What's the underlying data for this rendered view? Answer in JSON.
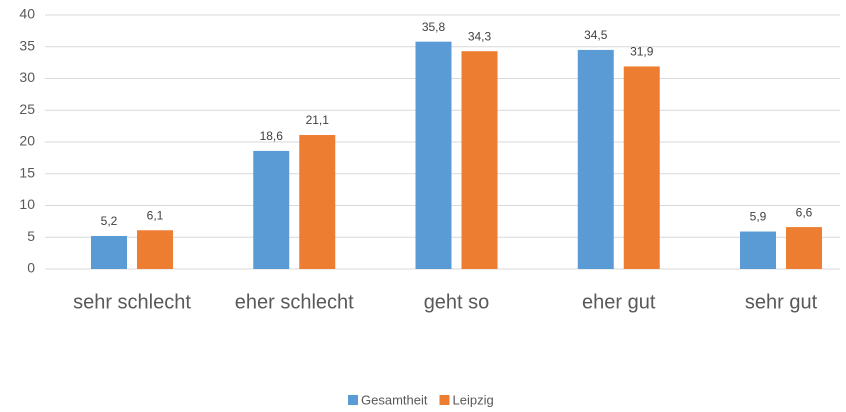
{
  "chart_data": {
    "type": "bar",
    "categories": [
      "sehr schlecht",
      "eher schlecht",
      "geht so",
      "eher gut",
      "sehr gut"
    ],
    "series": [
      {
        "name": "Gesamtheit",
        "color": "#5b9bd5",
        "values": [
          5.2,
          18.6,
          35.8,
          34.5,
          5.9
        ],
        "value_labels": [
          "5,2",
          "18,6",
          "35,8",
          "34,5",
          "5,9"
        ]
      },
      {
        "name": "Leipzig",
        "color": "#ed7d31",
        "values": [
          6.1,
          21.1,
          34.3,
          31.9,
          6.6
        ],
        "value_labels": [
          "6,1",
          "21,1",
          "34,3",
          "31,9",
          "6,6"
        ]
      }
    ],
    "ylim": [
      0,
      40
    ],
    "yticks": [
      0,
      5,
      10,
      15,
      20,
      25,
      30,
      35,
      40
    ],
    "grid": true,
    "legend": "bottom"
  }
}
